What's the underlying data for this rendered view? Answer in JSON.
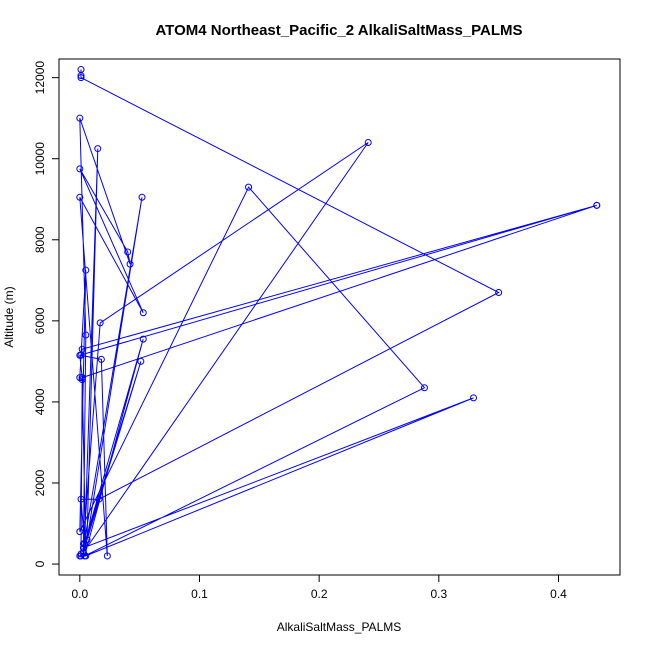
{
  "chart_data": {
    "type": "line",
    "title": "ATOM4 Northeast_Pacific_2 AlkaliSaltMass_PALMS",
    "xlabel": "AlkaliSaltMass_PALMS",
    "ylabel": "Altitude (m)",
    "xlim": [
      -0.0174,
      0.4514
    ],
    "ylim": [
      -270,
      12460
    ],
    "x_ticks": [
      0.0,
      0.1,
      0.2,
      0.3,
      0.4
    ],
    "x_tick_labels": [
      "0.0",
      "0.1",
      "0.2",
      "0.3",
      "0.4"
    ],
    "y_ticks": [
      0,
      2000,
      4000,
      6000,
      8000,
      10000,
      12000
    ],
    "y_tick_labels": [
      "0",
      "2000",
      "4000",
      "6000",
      "8000",
      "10000",
      "12000"
    ],
    "grid": false,
    "legend": "none",
    "color": "#0000ff",
    "marker": "open-circle",
    "series": [
      {
        "points": [
          [
            0.001,
            12200
          ],
          [
            0.001,
            12050
          ],
          [
            0.001,
            12000
          ],
          [
            0.35,
            6700
          ],
          [
            0.016,
            1600
          ],
          [
            0.001,
            1600
          ],
          [
            0.004,
            500
          ],
          [
            0.015,
            10250
          ],
          [
            0.006,
            600
          ],
          [
            0.052,
            9050
          ],
          [
            0.003,
            400
          ],
          [
            0.051,
            5000
          ],
          [
            0.003,
            300
          ],
          [
            0.005,
            5650
          ],
          [
            0.0,
            11000
          ],
          [
            0.042,
            7400
          ],
          [
            0.04,
            7700
          ],
          [
            0.0,
            9750
          ],
          [
            0.053,
            6200
          ],
          [
            0.0,
            9050
          ],
          [
            0.023,
            200
          ],
          [
            0.018,
            5050
          ],
          [
            0.001,
            5150
          ],
          [
            0.002,
            5300
          ],
          [
            0.432,
            8850
          ],
          [
            0.0,
            5150
          ],
          [
            0.002,
            4600
          ],
          [
            0.432,
            8850
          ],
          [
            0.002,
            4600
          ],
          [
            0.005,
            200
          ],
          [
            0.329,
            4100
          ],
          [
            0.003,
            400
          ],
          [
            0.053,
            5550
          ],
          [
            0.004,
            200
          ],
          [
            0.288,
            4350
          ],
          [
            0.141,
            9300
          ],
          [
            0.0,
            800
          ],
          [
            0.005,
            7250
          ],
          [
            0.0,
            4600
          ],
          [
            0.002,
            4550
          ],
          [
            0.001,
            250
          ],
          [
            0.0,
            200
          ],
          [
            0.001,
            200
          ],
          [
            0.241,
            10400
          ],
          [
            0.017,
            5950
          ],
          [
            0.003,
            500
          ]
        ]
      }
    ]
  }
}
